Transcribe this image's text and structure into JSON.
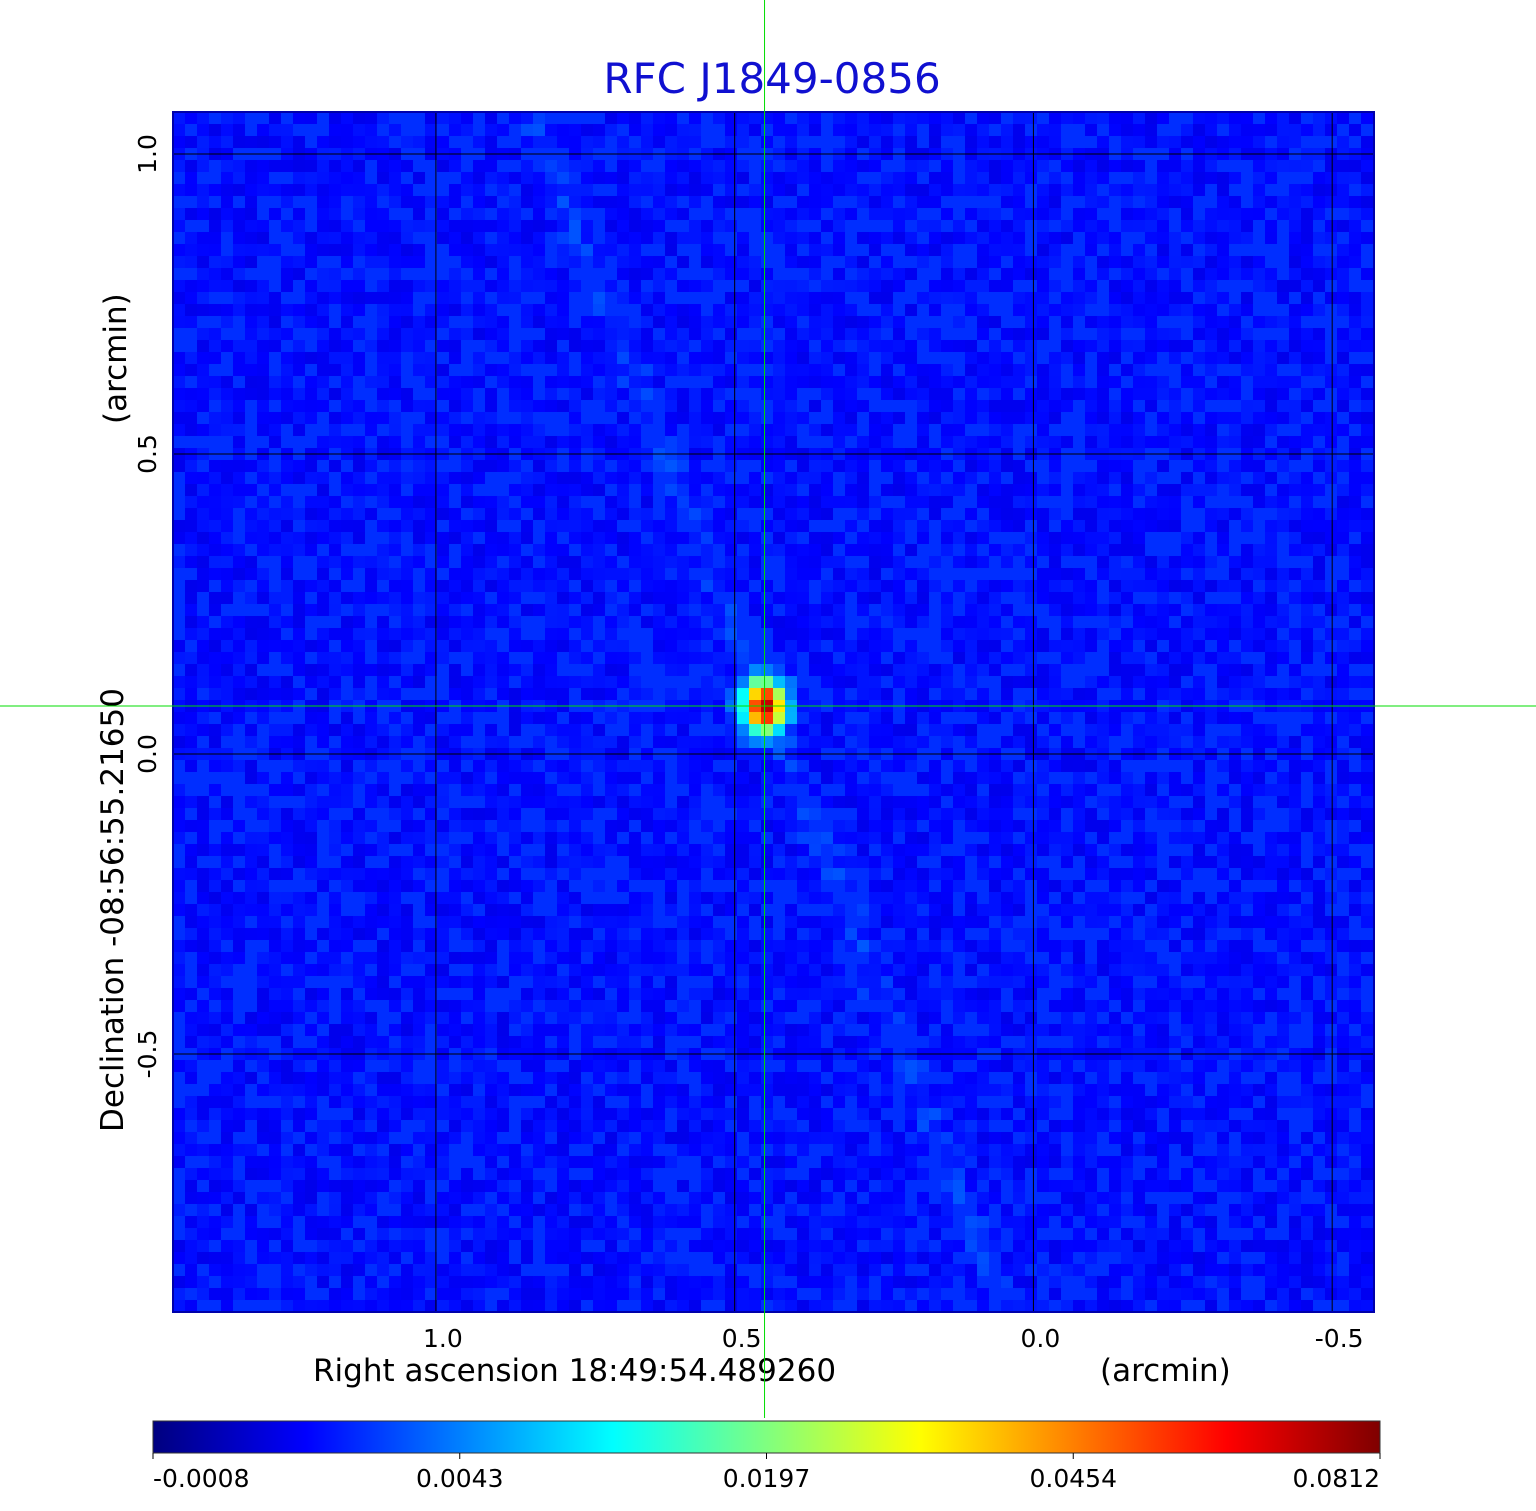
{
  "chart_data": {
    "type": "heatmap",
    "title": "RFC J1849-0856",
    "colormap": "jet",
    "title_color": "#1010d0",
    "grid_color": "#000000",
    "crosshair_color": "#00dd00",
    "x_axis": {
      "label": "Right ascension  18:49:54.489260",
      "unit": "(arcmin)",
      "ticks": [
        {
          "value": 1.0,
          "label": "1.0"
        },
        {
          "value": 0.5,
          "label": "0.5"
        },
        {
          "value": 0.0,
          "label": "0.0"
        },
        {
          "value": -0.5,
          "label": "-0.5"
        }
      ],
      "range": [
        1.44,
        -0.57
      ],
      "inverted": true
    },
    "y_axis": {
      "label": "Declination  -08:56:55.21650",
      "unit": "(arcmin)",
      "ticks": [
        {
          "value": 1.0,
          "label": "1.0"
        },
        {
          "value": 0.5,
          "label": "0.5"
        },
        {
          "value": 0.0,
          "label": "0.0"
        },
        {
          "value": -0.5,
          "label": "-0.5"
        }
      ],
      "range": [
        -0.93,
        1.07
      ]
    },
    "grid": true,
    "crosshair": {
      "x": 0.45,
      "y": 0.08
    },
    "source_peak": {
      "x": 0.45,
      "y": 0.08,
      "value": 0.0812
    },
    "colorbar": {
      "labels": [
        "-0.0008",
        "0.0043",
        "0.0197",
        "0.0454",
        "0.0812"
      ],
      "min": -0.0008,
      "max": 0.0812,
      "scale": "nonlinear"
    }
  }
}
